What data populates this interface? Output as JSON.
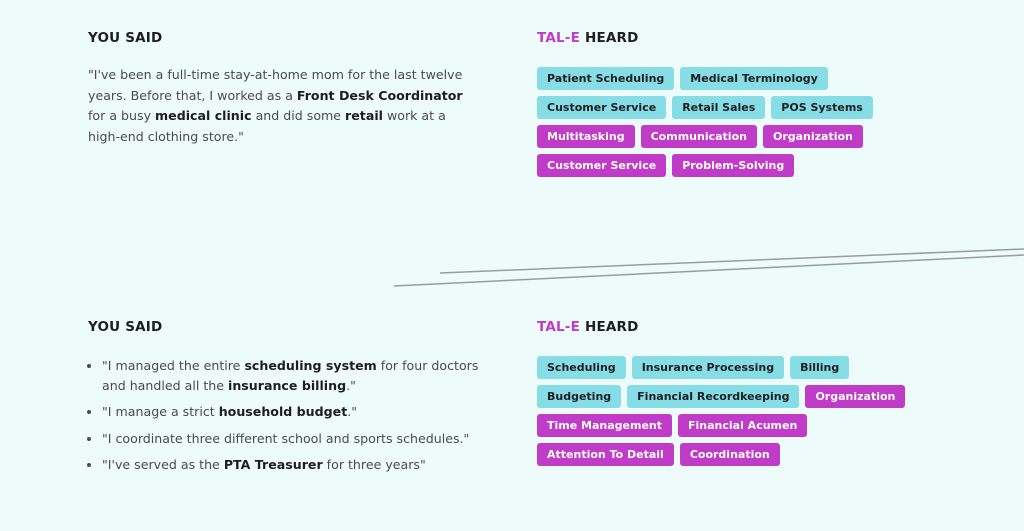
{
  "colors": {
    "background": "#eefbfb",
    "hard_skill_tag": "#86dde6",
    "soft_skill_tag": "#c03cc8",
    "accent": "#c03cc8"
  },
  "sections": [
    {
      "you_said_heading": "YOU SAID",
      "heard_heading_accent": "TAL-E",
      "heard_heading_rest": " HEARD",
      "quote": [
        {
          "text": "\"I've been a full-time stay-at-home mom for the last twelve years. Before that, I worked as a ",
          "bold": false
        },
        {
          "text": "Front Desk Coordinator",
          "bold": true
        },
        {
          "text": " for a busy ",
          "bold": false
        },
        {
          "text": "medical clinic",
          "bold": true
        },
        {
          "text": " and did some ",
          "bold": false
        },
        {
          "text": "retail",
          "bold": true
        },
        {
          "text": " work at a high-end clothing store.\"",
          "bold": false
        }
      ],
      "tags": [
        {
          "label": "Patient Scheduling",
          "type": "hard"
        },
        {
          "label": "Medical Terminology",
          "type": "hard"
        },
        {
          "label": "Customer Service",
          "type": "hard"
        },
        {
          "label": "Retail Sales",
          "type": "hard"
        },
        {
          "label": "POS Systems",
          "type": "hard"
        },
        {
          "label": "Multitasking",
          "type": "soft"
        },
        {
          "label": "Communication",
          "type": "soft"
        },
        {
          "label": "Organization",
          "type": "soft"
        },
        {
          "label": "Customer Service",
          "type": "soft"
        },
        {
          "label": "Problem-Solving",
          "type": "soft"
        }
      ]
    },
    {
      "you_said_heading": "YOU SAID",
      "heard_heading_accent": "TAL-E",
      "heard_heading_rest": " HEARD",
      "bullets": [
        [
          {
            "text": "\"I managed the entire ",
            "bold": false
          },
          {
            "text": "scheduling system",
            "bold": true
          },
          {
            "text": " for four doctors and handled all the ",
            "bold": false
          },
          {
            "text": "insurance billing",
            "bold": true
          },
          {
            "text": ".\"",
            "bold": false
          }
        ],
        [
          {
            "text": "\"I manage a strict ",
            "bold": false
          },
          {
            "text": "household budget",
            "bold": true
          },
          {
            "text": ".\"",
            "bold": false
          }
        ],
        [
          {
            "text": "\"I coordinate three different school and sports schedules.\"",
            "bold": false
          }
        ],
        [
          {
            "text": "\"I've served as the ",
            "bold": false
          },
          {
            "text": "PTA Treasurer",
            "bold": true
          },
          {
            "text": " for three years\"",
            "bold": false
          }
        ]
      ],
      "tags": [
        {
          "label": "Scheduling",
          "type": "hard"
        },
        {
          "label": "Insurance Processing",
          "type": "hard"
        },
        {
          "label": "Billing",
          "type": "hard"
        },
        {
          "label": "Budgeting",
          "type": "hard"
        },
        {
          "label": "Financial Recordkeeping",
          "type": "hard"
        },
        {
          "label": "Organization",
          "type": "soft"
        },
        {
          "label": "Time Management",
          "type": "soft"
        },
        {
          "label": "Financial Acumen",
          "type": "soft"
        },
        {
          "label": "Attention To Detail",
          "type": "soft"
        },
        {
          "label": "Coordination",
          "type": "soft"
        }
      ]
    }
  ]
}
